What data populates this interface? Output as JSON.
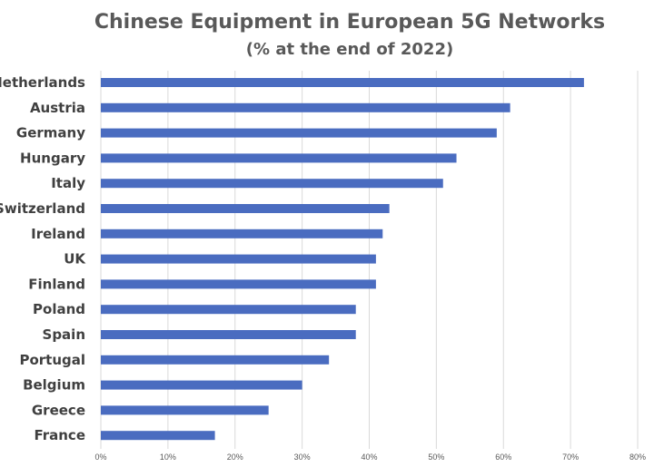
{
  "chart_data": {
    "type": "bar",
    "orientation": "horizontal",
    "title": "Chinese Equipment in European 5G Networks",
    "subtitle": "(% at the end of 2022)",
    "categories": [
      "Netherlands",
      "Austria",
      "Germany",
      "Hungary",
      "Italy",
      "Switzerland",
      "Ireland",
      "UK",
      "Finland",
      "Poland",
      "Spain",
      "Portugal",
      "Belgium",
      "Greece",
      "France"
    ],
    "values": [
      72,
      61,
      59,
      53,
      51,
      43,
      42,
      41,
      41,
      38,
      38,
      34,
      30,
      25,
      17
    ],
    "xlim": [
      0,
      80
    ],
    "xticks": [
      "0%",
      "10%",
      "20%",
      "30%",
      "40%",
      "50%",
      "60%",
      "70%",
      "80%"
    ],
    "grid": true,
    "legend": "none",
    "bar_color": "#4a6cc0",
    "grid_color": "#d9d9d9"
  }
}
